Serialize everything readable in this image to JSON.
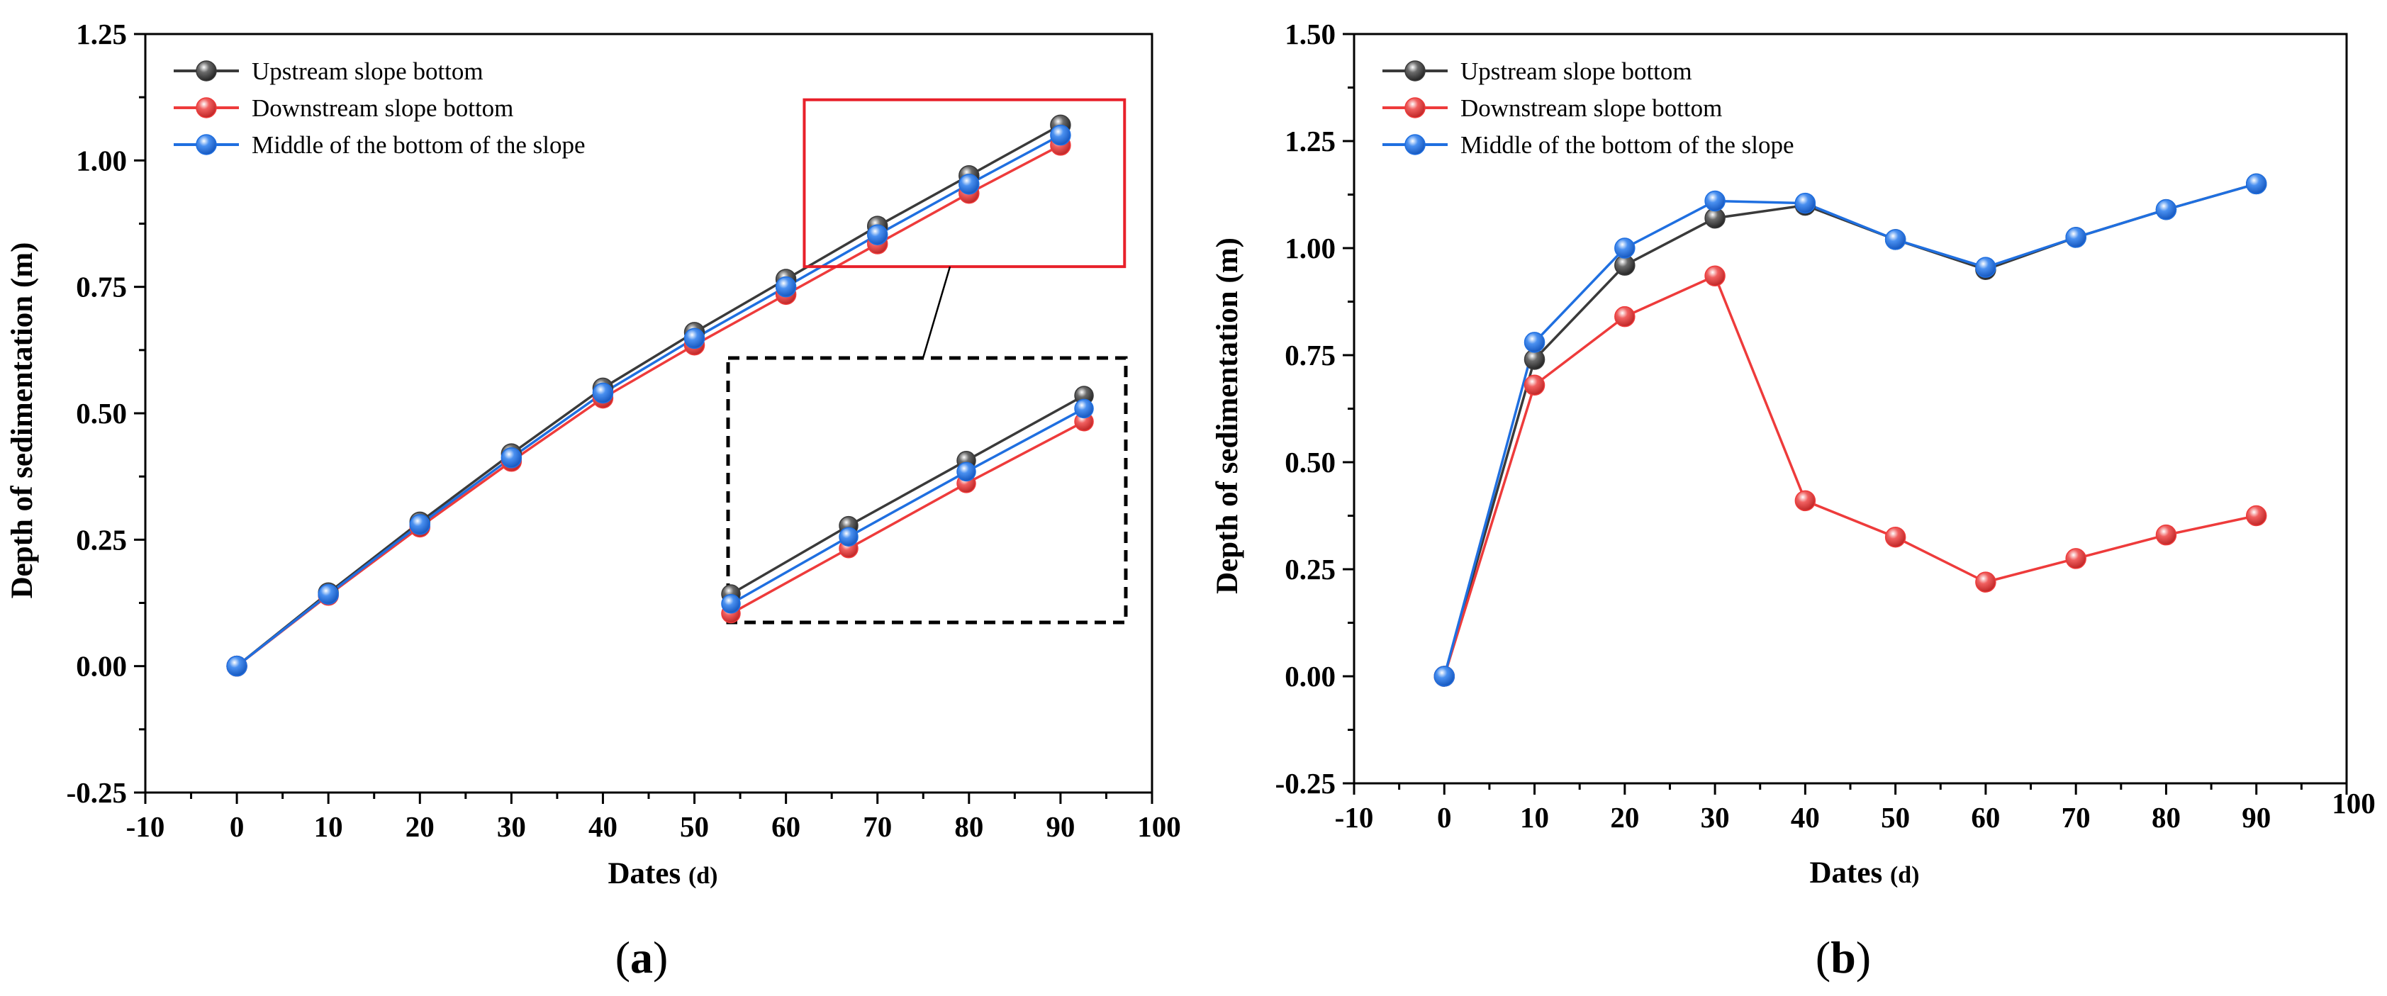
{
  "chart_data": [
    {
      "type": "line",
      "panel_label": [
        "(",
        "a",
        ")"
      ],
      "xlabel": "Dates",
      "xlabel_unit": "(d)",
      "ylabel": "Depth of sedimentation (m)",
      "xlim": [
        -10,
        100
      ],
      "ylim": [
        -0.25,
        1.25
      ],
      "xticks": [
        -10,
        0,
        10,
        20,
        30,
        40,
        50,
        60,
        70,
        80,
        90,
        100
      ],
      "yticks": [
        -0.25,
        0.0,
        0.25,
        0.5,
        0.75,
        1.0,
        1.25
      ],
      "ytick_labels": [
        "-0.25",
        "0.00",
        "0.25",
        "0.50",
        "0.75",
        "1.00",
        "1.25"
      ],
      "legend_position": "top-left",
      "x": [
        0,
        10,
        20,
        30,
        40,
        50,
        60,
        70,
        80,
        90
      ],
      "series": [
        {
          "name": "Upstream slope bottom",
          "color": "#3a3a3a",
          "values": [
            0,
            0.145,
            0.285,
            0.42,
            0.55,
            0.66,
            0.765,
            0.87,
            0.97,
            1.07
          ]
        },
        {
          "name": "Downstream slope bottom",
          "color": "#ee3b3b",
          "values": [
            0,
            0.14,
            0.275,
            0.405,
            0.53,
            0.635,
            0.735,
            0.835,
            0.935,
            1.03
          ]
        },
        {
          "name": "Middle of the bottom of the slope",
          "color": "#1f6fe0",
          "values": [
            0,
            0.142,
            0.28,
            0.412,
            0.54,
            0.648,
            0.75,
            0.853,
            0.953,
            1.05
          ]
        }
      ],
      "annotation": "zoom inset of region x 62-97, y 0.79-1.12"
    },
    {
      "type": "line",
      "panel_label": [
        "(",
        "b",
        ")"
      ],
      "xlabel": "Dates",
      "xlabel_unit": "(d)",
      "ylabel": "Depth of sedimentation (m)",
      "xlim": [
        -10,
        100
      ],
      "ylim": [
        -0.25,
        1.5
      ],
      "xticks": [
        -10,
        0,
        10,
        20,
        30,
        40,
        50,
        60,
        70,
        80,
        90,
        100
      ],
      "yticks": [
        -0.25,
        0.0,
        0.25,
        0.5,
        0.75,
        1.0,
        1.25,
        1.5
      ],
      "ytick_labels": [
        "-0.25",
        "0.00",
        "0.25",
        "0.50",
        "0.75",
        "1.00",
        "1.25",
        "1.50"
      ],
      "legend_position": "top-left",
      "x": [
        0,
        10,
        20,
        30,
        40,
        50,
        60,
        70,
        80,
        90
      ],
      "series": [
        {
          "name": "Upstream slope bottom",
          "color": "#3a3a3a",
          "values": [
            0,
            0.74,
            0.96,
            1.07,
            1.1,
            1.02,
            0.95,
            1.025,
            1.09,
            1.15
          ]
        },
        {
          "name": "Downstream slope bottom",
          "color": "#ee3b3b",
          "values": [
            0,
            0.68,
            0.84,
            0.935,
            0.41,
            0.325,
            0.22,
            0.275,
            0.33,
            0.375
          ]
        },
        {
          "name": "Middle of the bottom of the slope",
          "color": "#1f6fe0",
          "values": [
            0,
            0.78,
            1.0,
            1.11,
            1.105,
            1.02,
            0.955,
            1.025,
            1.09,
            1.15
          ]
        }
      ]
    }
  ]
}
